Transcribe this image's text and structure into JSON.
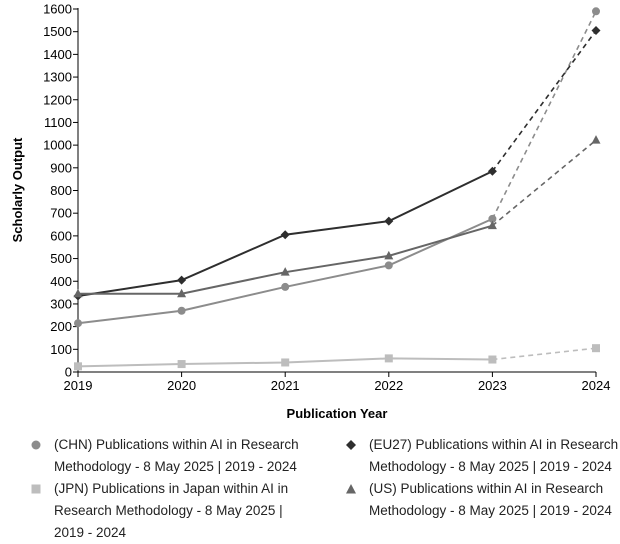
{
  "chart_data": {
    "type": "line",
    "xlabel": "Publication Year",
    "ylabel": "Scholarly Output",
    "x": [
      2019,
      2020,
      2021,
      2022,
      2023,
      2024
    ],
    "ylim": [
      0,
      1600
    ],
    "yticks": [
      0,
      100,
      200,
      300,
      400,
      500,
      600,
      700,
      800,
      900,
      1000,
      1100,
      1200,
      1300,
      1400,
      1500,
      1600
    ],
    "xtick_labels": [
      "2019",
      "2020",
      "2021",
      "2022",
      "2023",
      "2024"
    ],
    "grid": false,
    "legend_position": "bottom",
    "note": "Final segment (2023 to 2024) drawn dashed for every series",
    "series": [
      {
        "name": "(CHN) Publications within AI in Research Methodology - 8 May 2025 | 2019 - 2024",
        "marker": "circle",
        "color": "#8c8c8c",
        "values": [
          215,
          270,
          375,
          470,
          675,
          1590
        ]
      },
      {
        "name": "(EU27) Publications within AI in Research Methodology - 8 May 2025 | 2019 - 2024",
        "marker": "diamond",
        "color": "#2e2e2e",
        "values": [
          335,
          405,
          605,
          665,
          885,
          1505
        ]
      },
      {
        "name": "(JPN) Publications in Japan within AI in Research Methodology - 8 May 2025 | 2019 - 2024",
        "marker": "square",
        "color": "#bdbdbd",
        "values": [
          25,
          35,
          42,
          60,
          55,
          105
        ]
      },
      {
        "name": "(US) Publications within AI in Research Methodology - 8 May 2025 | 2019 - 2024",
        "marker": "triangle",
        "color": "#666666",
        "values": [
          345,
          345,
          440,
          512,
          645,
          1022
        ]
      }
    ]
  }
}
